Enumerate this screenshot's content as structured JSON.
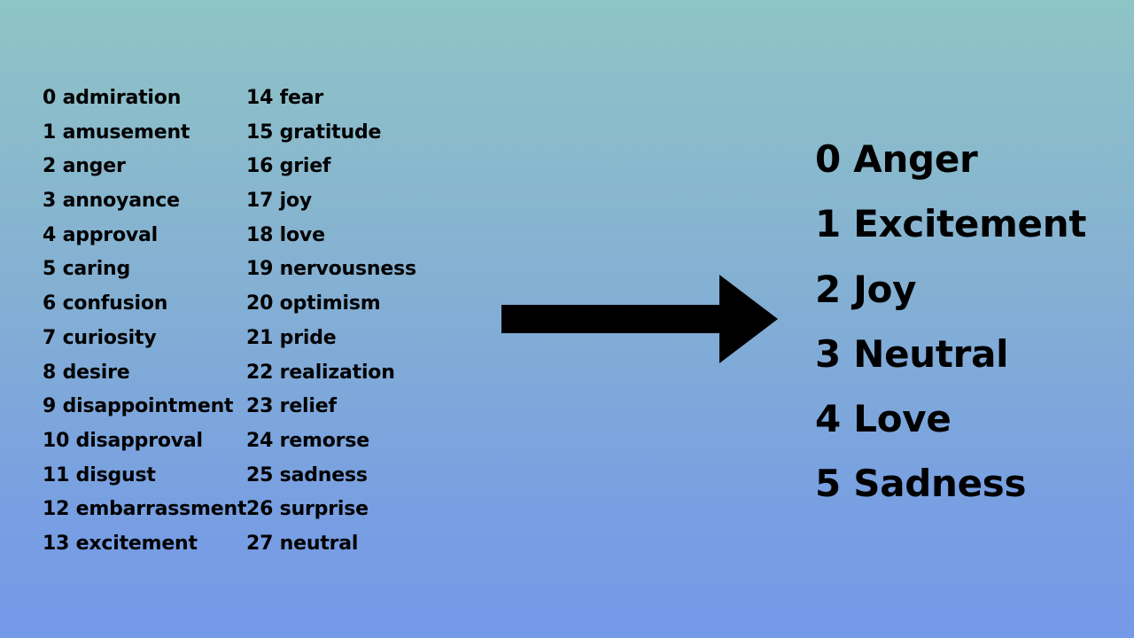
{
  "source_labels": [
    "0 admiration",
    "1 amusement",
    "2 anger",
    "3 annoyance",
    "4 approval",
    "5 caring",
    "6 confusion",
    "7 curiosity",
    "8 desire",
    "9 disappointment",
    "10 disapproval",
    "11 disgust",
    "12 embarrassment",
    "13 excitement",
    "14 fear",
    "15 gratitude",
    "16 grief",
    "17 joy",
    "18 love",
    "19 nervousness",
    "20 optimism",
    "21 pride",
    "22 realization",
    "23 relief",
    "24 remorse",
    "25 sadness",
    "26 surprise",
    "27 neutral"
  ],
  "target_labels": [
    "0 Anger",
    "1 Excitement",
    "2 Joy",
    "3 Neutral",
    "4 Love",
    "5 Sadness"
  ],
  "arrow": {
    "icon": "right-arrow-icon",
    "color": "#000000"
  },
  "colors": {
    "text": "#000000",
    "background_top": "#8fc4c6",
    "background_bottom": "#7499e8"
  }
}
